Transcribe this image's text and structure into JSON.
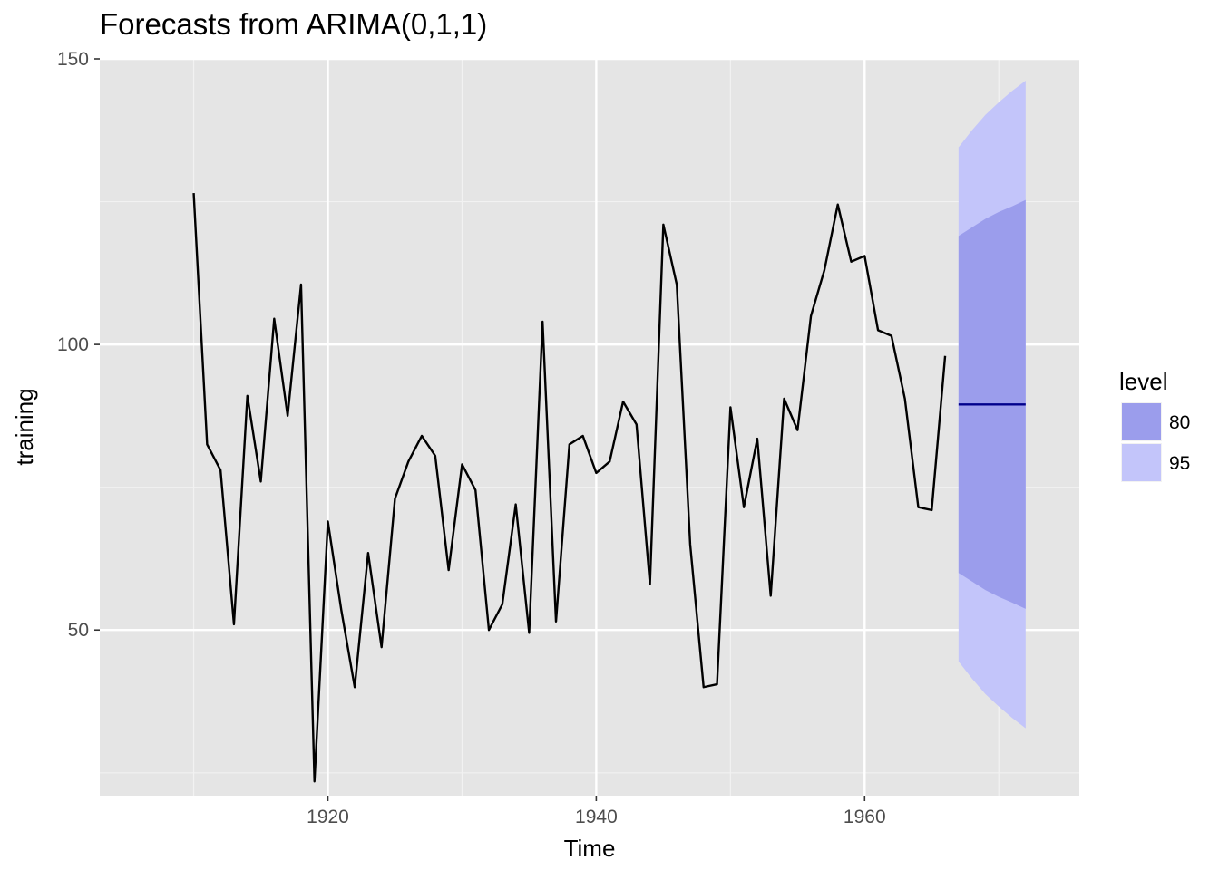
{
  "chart_data": {
    "type": "line",
    "title": "Forecasts from ARIMA(0,1,1)",
    "xlabel": "Time",
    "ylabel": "training",
    "xlim": [
      1903,
      1976
    ],
    "ylim": [
      21,
      150
    ],
    "x_ticks": [
      1920,
      1940,
      1960
    ],
    "y_ticks": [
      50,
      100,
      150
    ],
    "grid": true,
    "legend": {
      "title": "level",
      "placement": "right",
      "entries": [
        {
          "label": "80",
          "color": "#9b9dec"
        },
        {
          "label": "95",
          "color": "#c3c5fa"
        }
      ]
    },
    "series": [
      {
        "x": [
          1910,
          1911,
          1912,
          1913,
          1914,
          1915,
          1916,
          1917,
          1918,
          1919,
          1920,
          1921,
          1922,
          1923,
          1924,
          1925,
          1926,
          1927,
          1928,
          1929,
          1930,
          1931,
          1932,
          1933,
          1934,
          1935,
          1936,
          1937,
          1938,
          1939,
          1940,
          1941,
          1942,
          1943,
          1944,
          1945,
          1946,
          1947,
          1948,
          1949,
          1950,
          1951,
          1952,
          1953,
          1954,
          1955,
          1956,
          1957,
          1958,
          1959,
          1960,
          1961,
          1962,
          1963,
          1964,
          1965,
          1966
        ],
        "values": [
          126.5,
          82.5,
          78,
          51,
          91,
          76,
          104.5,
          87.5,
          110.5,
          23.5,
          69,
          53.5,
          40,
          63.5,
          47,
          73,
          79.5,
          84,
          80.5,
          60.5,
          79,
          74.5,
          50,
          54.5,
          72,
          49.5,
          104,
          51.5,
          82.5,
          84,
          77.5,
          79.5,
          90,
          86,
          58,
          121,
          110.5,
          65,
          40,
          40.5,
          89,
          71.5,
          83.5,
          56,
          90.5,
          85,
          105,
          113,
          124.5,
          114.5,
          115.5,
          102.5,
          101.5,
          90.5,
          71.5,
          71,
          98
        ],
        "color": "#000000"
      }
    ],
    "forecast": {
      "x": [
        1967,
        1968,
        1969,
        1970,
        1971,
        1972
      ],
      "mean": [
        89.5,
        89.5,
        89.5,
        89.5,
        89.5,
        89.5
      ],
      "lo80": [
        60,
        58.5,
        57,
        55.8,
        54.8,
        53.7
      ],
      "hi80": [
        119,
        120.5,
        122,
        123.2,
        124.2,
        125.3
      ],
      "lo95": [
        44.5,
        41.5,
        38.8,
        36.6,
        34.6,
        32.8
      ],
      "hi95": [
        134.5,
        137.5,
        140.2,
        142.4,
        144.4,
        146.2
      ],
      "mean_color": "#00008b"
    }
  }
}
